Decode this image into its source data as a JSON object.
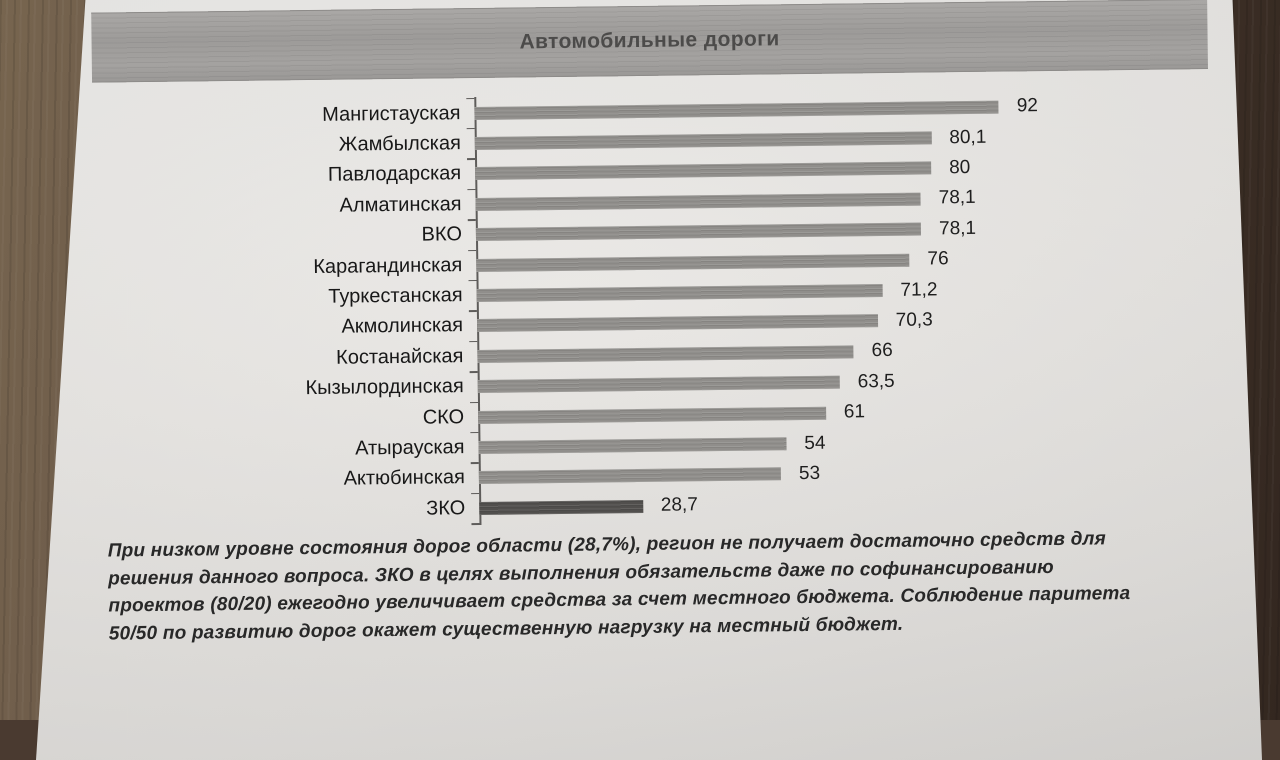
{
  "title_banner": {
    "label": "Автомобильные дороги"
  },
  "chart_data": {
    "type": "bar",
    "orientation": "horizontal",
    "title": "Автомобильные дороги",
    "categories": [
      "Мангистауская",
      "Жамбылская",
      "Павлодарская",
      "Алматинская",
      "ВКО",
      "Карагандинская",
      "Туркестанская",
      "Акмолинская",
      "Костанайская",
      "Кызылординская",
      "СКО",
      "Атырауская",
      "Актюбинская",
      "ЗКО"
    ],
    "values": [
      92,
      80.1,
      80,
      78.1,
      78.1,
      76,
      71.2,
      70.3,
      66,
      63.5,
      61,
      54,
      53,
      28.7
    ],
    "value_labels": [
      "92",
      "80,1",
      "80",
      "78,1",
      "78,1",
      "76",
      "71,2",
      "70,3",
      "66",
      "63,5",
      "61",
      "54",
      "53",
      "28,7"
    ],
    "xlim": [
      0,
      100
    ],
    "grid": false,
    "legend": "none",
    "bar_color": "#908e8b",
    "highlight_category": "ЗКО",
    "highlight_bar_color": "#514f4d"
  },
  "note": {
    "text": "При низком уровне состояния дорог области (28,7%), регион не получает достаточно средств для решения данного вопроса. ЗКО в целях выполнения обязательств даже по софинансированию проектов (80/20) ежегодно увеличивает средства за счет местного бюджета. Соблюдение паритета 50/50 по развитию дорог окажет существенную нагрузку на местный бюджет."
  },
  "colors": {
    "paper": "#e8e6e3",
    "desk_wood_left": "#6a5848",
    "desk_wood_right": "#3a2d24",
    "banner_background": "#a09e9c",
    "banner_title_text": "#4c4b4a",
    "axis_line": "#5e5c5a",
    "category_label_text": "#181818",
    "value_label_text": "#1e1e1e",
    "note_text": "#282828"
  }
}
